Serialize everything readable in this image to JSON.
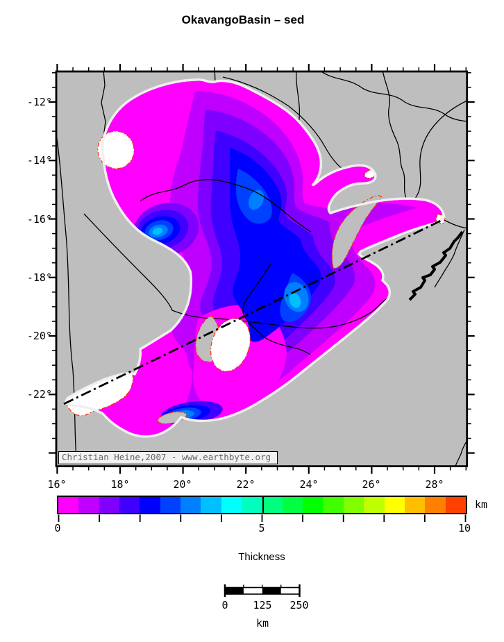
{
  "title": "OkavangoBasin – sed",
  "map": {
    "attribution": "Christian Heine,2007 - www.earthbyte.org",
    "x_tick_labels": [
      "16°",
      "18°",
      "20°",
      "22°",
      "24°",
      "26°",
      "28°"
    ],
    "y_tick_labels": [
      "-12°",
      "-14°",
      "-16°",
      "-18°",
      "-20°",
      "-22°"
    ],
    "background_color": "#bebebe",
    "basin_outline_color": "#ff3000",
    "land_line_color": "#000000"
  },
  "colorbar": {
    "label": "Thickness",
    "unit": "km",
    "min": 0,
    "max": 10,
    "tick_labels": [
      "0",
      "5",
      "10"
    ],
    "segment_colors": [
      "#ff00ff",
      "#bf00ff",
      "#8000ff",
      "#4000ff",
      "#0000ff",
      "#0040ff",
      "#0080ff",
      "#00bfff",
      "#00ffff",
      "#00ffbf",
      "#00ff80",
      "#00ff40",
      "#00ff00",
      "#40ff00",
      "#80ff00",
      "#bfff00",
      "#ffff00",
      "#ffbf00",
      "#ff8000",
      "#ff4000"
    ]
  },
  "scalebar": {
    "tick_labels": [
      "0",
      "125",
      "250"
    ],
    "unit": "km"
  }
}
